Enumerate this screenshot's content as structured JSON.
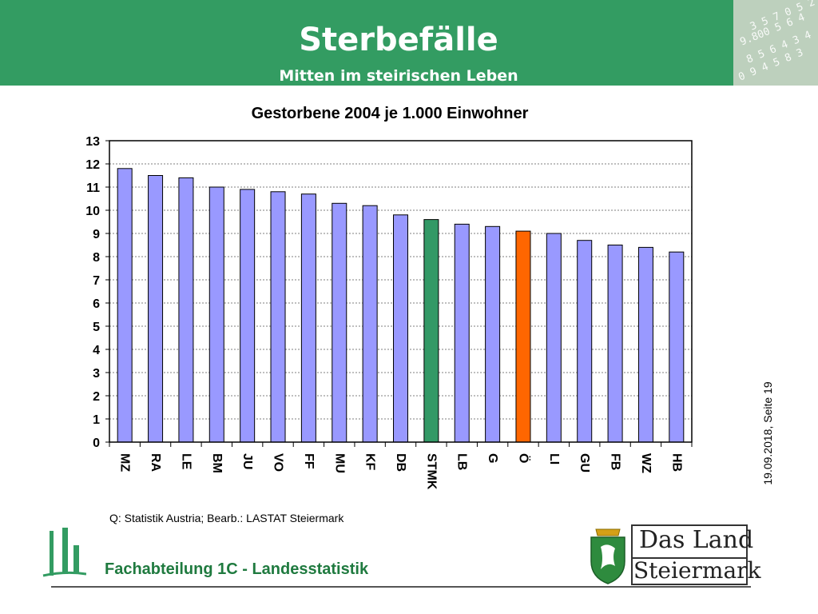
{
  "header": {
    "title": "Sterbefälle",
    "subtitle": "Mitten im steirischen Leben",
    "color": "#339c62"
  },
  "chart_data": {
    "type": "bar",
    "title": "Gestorbene 2004 je 1.000 Einwohner",
    "xlabel": "",
    "ylabel": "",
    "ylim": [
      0,
      13
    ],
    "yticks": [
      0,
      1,
      2,
      3,
      4,
      5,
      6,
      7,
      8,
      9,
      10,
      11,
      12,
      13
    ],
    "grid": true,
    "categories": [
      "MZ",
      "RA",
      "LE",
      "BM",
      "JU",
      "VO",
      "FF",
      "MU",
      "KF",
      "DB",
      "STMK",
      "LB",
      "G",
      "Ö",
      "LI",
      "GU",
      "FB",
      "WZ",
      "HB"
    ],
    "values": [
      11.8,
      11.5,
      11.4,
      11.0,
      10.9,
      10.8,
      10.7,
      10.3,
      10.2,
      9.8,
      9.6,
      9.4,
      9.3,
      9.1,
      9.0,
      8.7,
      8.5,
      8.4,
      8.2
    ],
    "colors": {
      "default": "#9999ff",
      "STMK": "#339966",
      "Ö": "#ff6600"
    }
  },
  "side_note": "19.09.2018, Seite 19",
  "source": "Q: Statistik Austria; Bearb.: LASTAT Steiermark",
  "footer": {
    "department": "Fachabteilung 1C -  Landesstatistik",
    "logo_line1": "Das Land",
    "logo_line2": "Steiermark"
  }
}
